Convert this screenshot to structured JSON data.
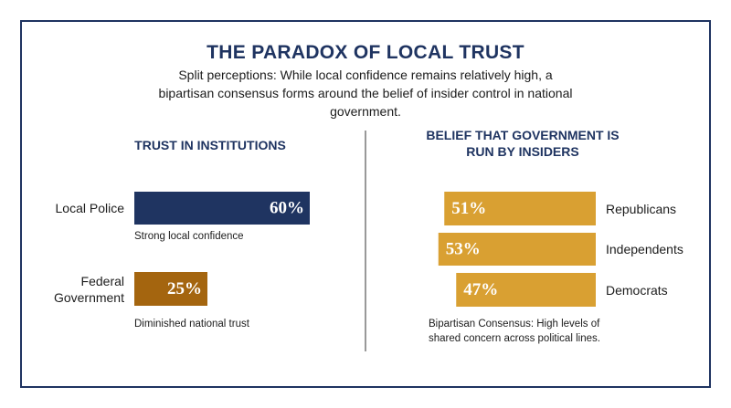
{
  "title": "THE PARADOX OF LOCAL TRUST",
  "subtitle": "Split perceptions: While local confidence remains relatively high, a bipartisan consensus forms around the belief of insider control in national government.",
  "chart_data": [
    {
      "type": "bar",
      "orientation": "horizontal",
      "title": "TRUST IN INSTITUTIONS",
      "categories": [
        "Local Police",
        "Federal Government"
      ],
      "values": [
        60,
        25
      ],
      "value_labels": [
        "60%",
        "25%"
      ],
      "colors": [
        "#1f3461",
        "#a4650f"
      ],
      "annotations": [
        "Strong local confidence",
        "Diminished national trust"
      ]
    },
    {
      "type": "bar",
      "orientation": "horizontal",
      "title": "BELIEF THAT GOVERNMENT IS RUN BY INSIDERS",
      "categories": [
        "Republicans",
        "Independents",
        "Democrats"
      ],
      "values": [
        51,
        53,
        47
      ],
      "value_labels": [
        "51%",
        "53%",
        "47%"
      ],
      "colors": [
        "#d9a032",
        "#d9a032",
        "#d9a032"
      ],
      "annotations": [
        "Bipartisan Consensus: High levels of shared concern across political lines."
      ]
    }
  ]
}
